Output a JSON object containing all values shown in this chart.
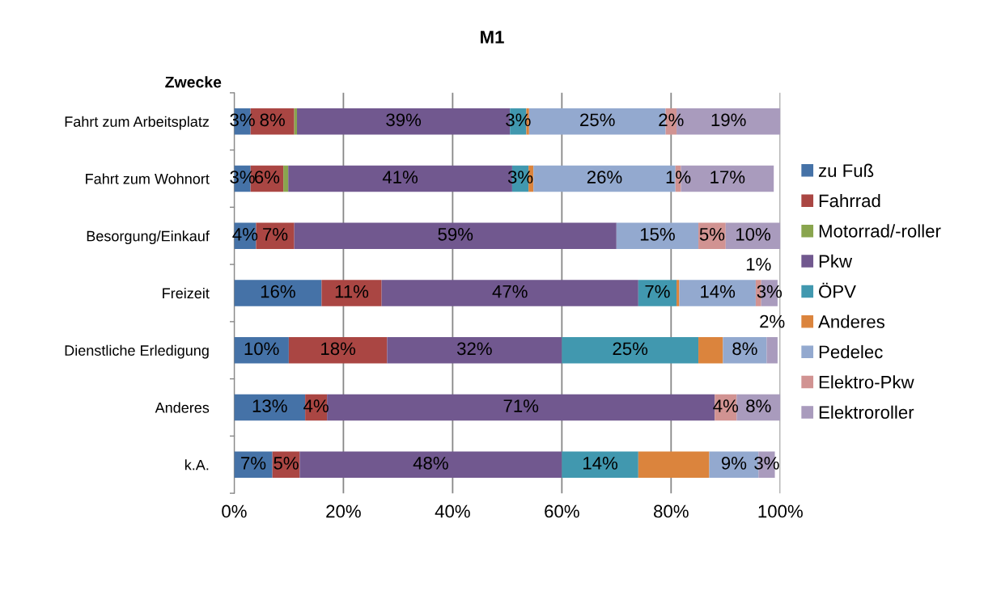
{
  "chart_data": {
    "type": "bar",
    "orientation": "horizontal",
    "stacked": true,
    "title": "M1",
    "ylabel": "Zwecke",
    "categories": [
      "Fahrt zum Arbeitsplatz",
      "Fahrt zum Wohnort",
      "Besorgung/Einkauf",
      "Freizeit",
      "Dienstliche Erledigung",
      "Anderes",
      "k.A."
    ],
    "series": [
      {
        "name": "zu Fuß",
        "color": "#4572a7",
        "values": [
          3,
          3,
          4,
          16,
          10,
          13,
          7
        ],
        "value_labels": [
          "3%",
          "3%",
          "4%",
          "16%",
          "10%",
          "13%",
          "7%"
        ]
      },
      {
        "name": "Fahrrad",
        "color": "#aa4643",
        "values": [
          8,
          6,
          7,
          11,
          18,
          4,
          5
        ],
        "value_labels": [
          "8%",
          "6%",
          "7%",
          "11%",
          "18%",
          "4%",
          "5%"
        ]
      },
      {
        "name": "Motorrad/-roller",
        "color": "#89a54e",
        "values": [
          0.5,
          0.9,
          0,
          0,
          0,
          0,
          0
        ],
        "value_labels": [
          null,
          null,
          null,
          null,
          null,
          null,
          null
        ]
      },
      {
        "name": "Pkw",
        "color": "#71588f",
        "values": [
          39,
          41,
          59,
          47,
          32,
          71,
          48
        ],
        "value_labels": [
          "39%",
          "41%",
          "59%",
          "47%",
          "32%",
          "71%",
          "48%"
        ]
      },
      {
        "name": "ÖPV",
        "color": "#4198af",
        "values": [
          3,
          3,
          0,
          7,
          25,
          0,
          14
        ],
        "value_labels": [
          "3%",
          "3%",
          null,
          "7%",
          "25%",
          null,
          "14%"
        ]
      },
      {
        "name": "Anderes",
        "color": "#db843d",
        "values": [
          0.5,
          0.9,
          0,
          0.5,
          4.5,
          0,
          13
        ],
        "value_labels": [
          null,
          null,
          null,
          null,
          null,
          null,
          null
        ]
      },
      {
        "name": "Pedelec",
        "color": "#93a9cf",
        "values": [
          25,
          26,
          15,
          14,
          8,
          0,
          9
        ],
        "value_labels": [
          "25%",
          "26%",
          "15%",
          "14%",
          "8%",
          null,
          "9%"
        ]
      },
      {
        "name": "Elektro-Pkw",
        "color": "#d19392",
        "values": [
          2,
          1,
          5,
          1,
          0,
          4,
          0
        ],
        "value_labels": [
          "2%",
          "1%",
          "5%",
          "1%",
          null,
          "4%",
          null
        ]
      },
      {
        "name": "Elektroroller",
        "color": "#a99bbd",
        "values": [
          19,
          17,
          10,
          3,
          2,
          8,
          3
        ],
        "value_labels": [
          "19%",
          "17%",
          "10%",
          "3%",
          "2%",
          "8%",
          "3%"
        ]
      }
    ],
    "xlim": [
      0,
      100
    ],
    "xticks": [
      {
        "value": 0,
        "label": "0%"
      },
      {
        "value": 20,
        "label": "20%"
      },
      {
        "value": 40,
        "label": "40%"
      },
      {
        "value": 60,
        "label": "60%"
      },
      {
        "value": 80,
        "label": "80%"
      },
      {
        "value": 100,
        "label": "100%"
      }
    ],
    "grid": "x",
    "legend": "right"
  }
}
